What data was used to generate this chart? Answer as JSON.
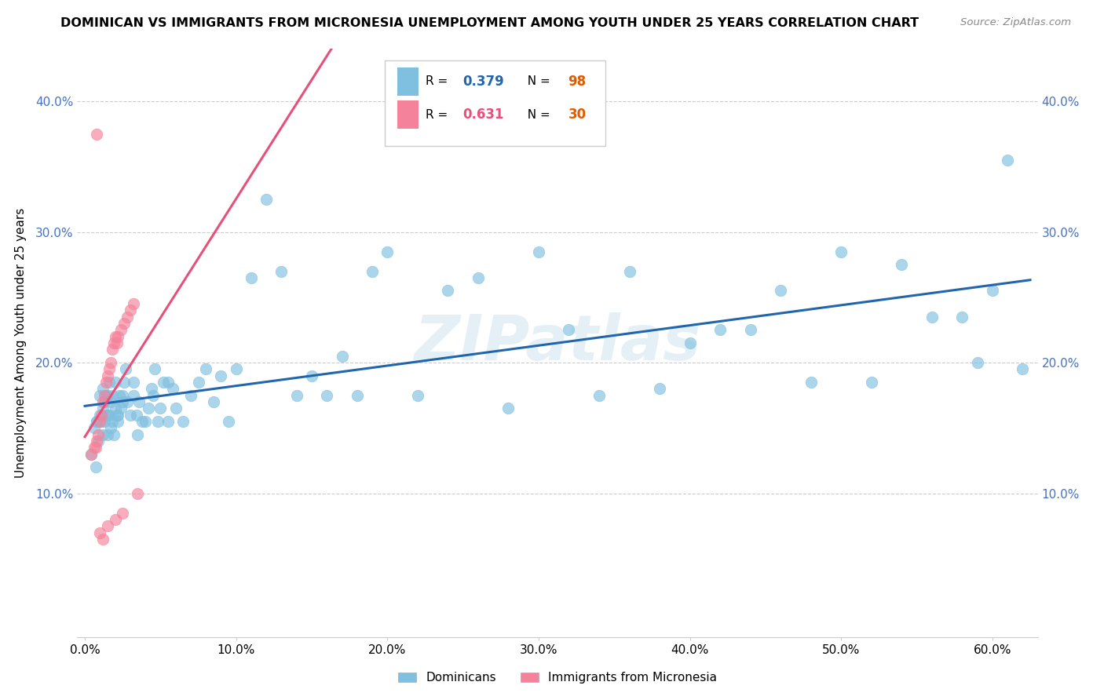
{
  "title": "DOMINICAN VS IMMIGRANTS FROM MICRONESIA UNEMPLOYMENT AMONG YOUTH UNDER 25 YEARS CORRELATION CHART",
  "source": "Source: ZipAtlas.com",
  "ylabel": "Unemployment Among Youth under 25 years",
  "xlim": [
    -0.005,
    0.63
  ],
  "ylim": [
    -0.01,
    0.44
  ],
  "xtick_vals": [
    0.0,
    0.1,
    0.2,
    0.3,
    0.4,
    0.5,
    0.6
  ],
  "ytick_vals": [
    0.1,
    0.2,
    0.3,
    0.4
  ],
  "legend_r1": "0.379",
  "legend_n1": "98",
  "legend_r2": "0.631",
  "legend_n2": "30",
  "dominican_color": "#7fbfdf",
  "micronesia_color": "#f4829a",
  "dominican_label": "Dominicans",
  "micronesia_label": "Immigrants from Micronesia",
  "trendline_dominican_color": "#2166ac",
  "trendline_micronesia_color": "#e8507a",
  "r_color": "#2166ac",
  "n_color": "#e05c00",
  "r2_color": "#e8507a",
  "watermark": "ZIPatlas",
  "dominican_x": [
    0.004,
    0.006,
    0.007,
    0.008,
    0.009,
    0.01,
    0.01,
    0.011,
    0.012,
    0.012,
    0.013,
    0.013,
    0.014,
    0.014,
    0.015,
    0.015,
    0.016,
    0.016,
    0.017,
    0.017,
    0.018,
    0.018,
    0.019,
    0.02,
    0.02,
    0.021,
    0.022,
    0.023,
    0.024,
    0.025,
    0.026,
    0.027,
    0.028,
    0.03,
    0.032,
    0.034,
    0.036,
    0.038,
    0.04,
    0.042,
    0.044,
    0.046,
    0.048,
    0.05,
    0.052,
    0.055,
    0.058,
    0.06,
    0.065,
    0.07,
    0.075,
    0.08,
    0.085,
    0.09,
    0.095,
    0.1,
    0.11,
    0.12,
    0.13,
    0.14,
    0.15,
    0.16,
    0.17,
    0.18,
    0.19,
    0.2,
    0.22,
    0.24,
    0.26,
    0.28,
    0.3,
    0.32,
    0.34,
    0.36,
    0.38,
    0.4,
    0.42,
    0.44,
    0.46,
    0.48,
    0.5,
    0.52,
    0.54,
    0.56,
    0.58,
    0.59,
    0.6,
    0.61,
    0.62,
    0.055,
    0.045,
    0.035,
    0.025,
    0.015,
    0.008,
    0.012,
    0.022,
    0.032
  ],
  "dominican_y": [
    0.13,
    0.15,
    0.12,
    0.155,
    0.14,
    0.16,
    0.175,
    0.155,
    0.165,
    0.18,
    0.155,
    0.17,
    0.16,
    0.175,
    0.145,
    0.175,
    0.16,
    0.185,
    0.15,
    0.17,
    0.155,
    0.175,
    0.145,
    0.165,
    0.185,
    0.16,
    0.155,
    0.175,
    0.165,
    0.175,
    0.185,
    0.195,
    0.17,
    0.16,
    0.175,
    0.16,
    0.17,
    0.155,
    0.155,
    0.165,
    0.18,
    0.195,
    0.155,
    0.165,
    0.185,
    0.155,
    0.18,
    0.165,
    0.155,
    0.175,
    0.185,
    0.195,
    0.17,
    0.19,
    0.155,
    0.195,
    0.265,
    0.325,
    0.27,
    0.175,
    0.19,
    0.175,
    0.205,
    0.175,
    0.27,
    0.285,
    0.175,
    0.255,
    0.265,
    0.165,
    0.285,
    0.225,
    0.175,
    0.27,
    0.18,
    0.215,
    0.225,
    0.225,
    0.255,
    0.185,
    0.285,
    0.185,
    0.275,
    0.235,
    0.235,
    0.2,
    0.255,
    0.355,
    0.195,
    0.185,
    0.175,
    0.145,
    0.17,
    0.16,
    0.155,
    0.145,
    0.16,
    0.185
  ],
  "micronesia_x": [
    0.004,
    0.006,
    0.007,
    0.008,
    0.009,
    0.01,
    0.011,
    0.012,
    0.013,
    0.014,
    0.015,
    0.016,
    0.017,
    0.018,
    0.019,
    0.02,
    0.021,
    0.022,
    0.024,
    0.026,
    0.028,
    0.03,
    0.032,
    0.01,
    0.015,
    0.02,
    0.025,
    0.012,
    0.008,
    0.035
  ],
  "micronesia_y": [
    0.13,
    0.135,
    0.135,
    0.14,
    0.145,
    0.155,
    0.16,
    0.17,
    0.175,
    0.185,
    0.19,
    0.195,
    0.2,
    0.21,
    0.215,
    0.22,
    0.215,
    0.22,
    0.225,
    0.23,
    0.235,
    0.24,
    0.245,
    0.07,
    0.075,
    0.08,
    0.085,
    0.065,
    0.375,
    0.1
  ]
}
